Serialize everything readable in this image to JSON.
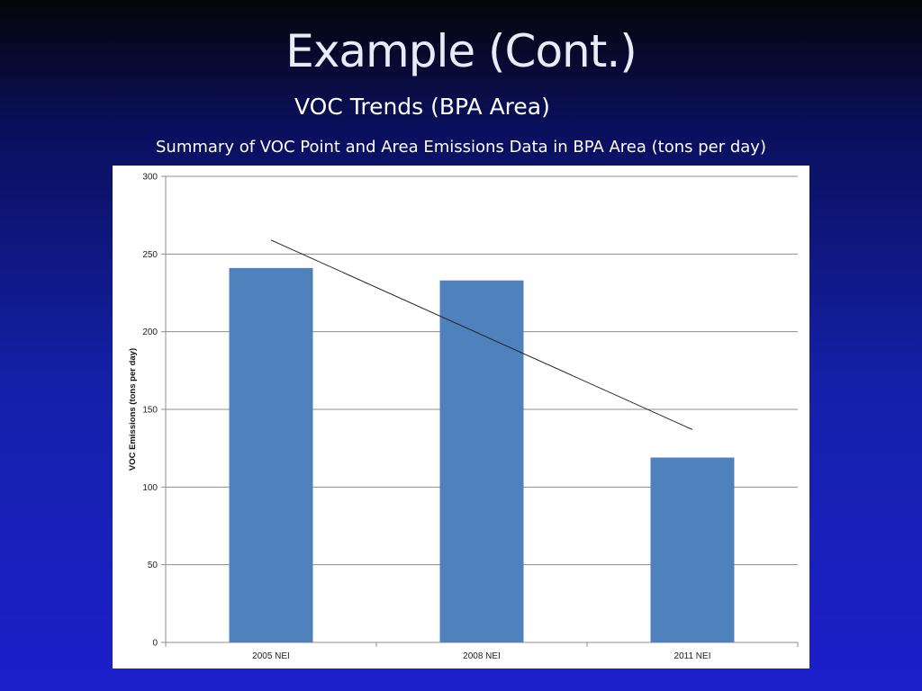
{
  "slide": {
    "title": "Example (Cont.)",
    "subtitle": "VOC Trends (BPA Area)",
    "caption": "Summary of VOC Point and Area Emissions Data in BPA Area (tons per day)"
  },
  "chart_data": {
    "type": "bar",
    "categories": [
      "2005 NEI",
      "2008 NEI",
      "2011 NEI"
    ],
    "series": [
      {
        "values": [
          241,
          233,
          119
        ]
      }
    ],
    "trendline": {
      "type": "linear",
      "start": 259,
      "end": 137
    },
    "ylabel": "VOC Emissions (tons per day)",
    "xlabel": "",
    "ylim": [
      0,
      300
    ],
    "yticks": [
      0,
      50,
      100,
      150,
      200,
      250,
      300
    ],
    "grid": true,
    "legend": "none",
    "colors": {
      "bar": "#4f81bd",
      "trendline": "#222222",
      "grid": "#8c8c8c"
    }
  }
}
